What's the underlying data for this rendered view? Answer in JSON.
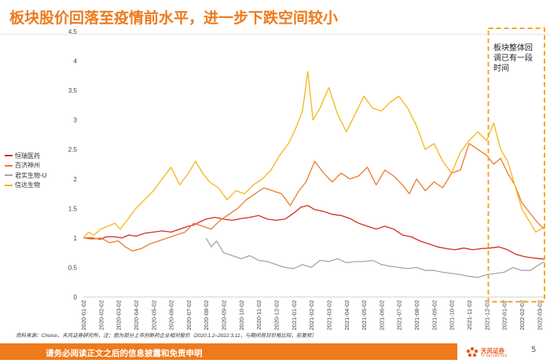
{
  "slide": {
    "title": "板块股价回落至疫情前水平，进一步下跌空间较小",
    "source": "资料来源：Choice，天风证券研究所，注：图为部分上市创新药企业相对股价（2020.1.2–2022.3.11，与期间首日价格比较，前复权）",
    "footer_text": "请务必阅读正文之后的信息披露和免责申明",
    "page_number": "5",
    "logo_text": "天风证券",
    "logo_sub": "TF SECURITIES"
  },
  "colors": {
    "accent": "#ee7a1c",
    "hengrui": "#d22d1e",
    "baiji": "#ec7b2c",
    "junshi": "#a6a6a6",
    "xinda": "#f6b51a"
  },
  "chart_data": {
    "type": "line",
    "title": "板块股价回落至疫情前水平，进一步下跌空间较小",
    "ylim": [
      0,
      4.5
    ],
    "yticks": [
      "0",
      "0.5",
      "1",
      "1.5",
      "2",
      "2.5",
      "3",
      "3.5",
      "4",
      "4.5"
    ],
    "x_range_months": [
      0,
      26.3
    ],
    "xtick_labels": [
      "2020-01-02",
      "2020-02-02",
      "2020-03-02",
      "2020-04-02",
      "2020-05-02",
      "2020-06-02",
      "2020-07-02",
      "2020-08-02",
      "2020-09-02",
      "2020-10-02",
      "2020-11-02",
      "2020-12-02",
      "2021-01-02",
      "2021-02-02",
      "2021-03-02",
      "2021-04-02",
      "2021-05-02",
      "2021-06-02",
      "2021-07-02",
      "2021-08-02",
      "2021-09-02",
      "2021-10-02",
      "2021-11-02",
      "2021-12-02",
      "2022-01-02",
      "2022-02-02",
      "2022-03-02"
    ],
    "annotation": "板块整体回调已有一段时间",
    "highlight_range_months": [
      23.1,
      26.3
    ],
    "series": [
      {
        "name": "恒瑞医药",
        "color_key": "hengrui",
        "x": [
          0,
          0.5,
          1,
          1.3,
          1.8,
          2.2,
          2.6,
          3,
          3.5,
          4,
          4.5,
          5,
          5.5,
          6,
          6.3,
          6.7,
          7,
          7.5,
          8,
          8.5,
          9,
          9.5,
          10,
          10.5,
          11,
          11.5,
          12,
          12.4,
          12.8,
          13.2,
          13.7,
          14.2,
          14.7,
          15.2,
          15.7,
          16.2,
          16.7,
          17.2,
          17.7,
          18.2,
          18.7,
          19.2,
          19.7,
          20.2,
          20.7,
          21.2,
          21.7,
          22.2,
          22.7,
          23.2,
          23.7,
          24.2,
          24.7,
          25.2,
          25.7,
          26.0,
          26.3
        ],
        "values": [
          1.0,
          1.0,
          0.98,
          1.02,
          1.02,
          1.0,
          1.05,
          1.03,
          1.08,
          1.1,
          1.12,
          1.1,
          1.15,
          1.2,
          1.22,
          1.28,
          1.32,
          1.35,
          1.32,
          1.3,
          1.33,
          1.35,
          1.38,
          1.32,
          1.3,
          1.32,
          1.42,
          1.52,
          1.55,
          1.48,
          1.45,
          1.4,
          1.38,
          1.33,
          1.25,
          1.2,
          1.15,
          1.2,
          1.15,
          1.05,
          1.02,
          0.95,
          0.9,
          0.85,
          0.82,
          0.8,
          0.83,
          0.8,
          0.82,
          0.83,
          0.85,
          0.8,
          0.72,
          0.68,
          0.66,
          0.65,
          0.64
        ]
      },
      {
        "name": "百济神州",
        "color_key": "baiji",
        "x": [
          0,
          0.5,
          1,
          1.5,
          2,
          2.4,
          2.8,
          3.3,
          3.8,
          4.3,
          4.8,
          5.3,
          5.8,
          6.3,
          6.8,
          7.3,
          7.8,
          8.3,
          8.8,
          9.3,
          9.8,
          10.3,
          10.8,
          11.3,
          11.8,
          12.3,
          12.7,
          13.2,
          13.7,
          14.2,
          14.7,
          15.2,
          15.7,
          16.2,
          16.7,
          17.2,
          17.7,
          18.2,
          18.6,
          19.0,
          19.5,
          20.0,
          20.5,
          21.0,
          21.5,
          22.0,
          22.5,
          23.0,
          23.4,
          23.8,
          24.2,
          24.6,
          25.0,
          25.4,
          25.8,
          26.1,
          26.3
        ],
        "values": [
          1.0,
          0.98,
          1.0,
          0.92,
          0.95,
          0.85,
          0.78,
          0.82,
          0.9,
          0.95,
          1.0,
          1.05,
          1.1,
          1.25,
          1.2,
          1.15,
          1.3,
          1.4,
          1.5,
          1.65,
          1.75,
          1.85,
          1.8,
          1.75,
          1.55,
          1.8,
          1.95,
          2.3,
          2.1,
          1.95,
          2.1,
          2.0,
          2.05,
          2.2,
          1.9,
          2.15,
          2.05,
          1.9,
          1.75,
          2.0,
          1.8,
          1.95,
          1.85,
          2.1,
          2.15,
          2.6,
          2.5,
          2.4,
          2.25,
          2.35,
          2.1,
          1.9,
          1.6,
          1.45,
          1.3,
          1.2,
          1.15
        ]
      },
      {
        "name": "君实生物-U",
        "color_key": "junshi",
        "x": [
          7.0,
          7.3,
          7.6,
          8.0,
          8.5,
          9.0,
          9.5,
          10.0,
          10.5,
          11.0,
          11.5,
          12.0,
          12.5,
          13.0,
          13.5,
          14.0,
          14.5,
          15.0,
          15.5,
          16.0,
          16.5,
          17.0,
          17.5,
          18.0,
          18.5,
          19.0,
          19.5,
          20.0,
          20.5,
          21.0,
          21.5,
          22.0,
          22.5,
          23.0,
          23.5,
          24.0,
          24.5,
          25.0,
          25.5,
          26.0,
          26.3
        ],
        "values": [
          1.0,
          0.85,
          0.95,
          0.75,
          0.7,
          0.65,
          0.7,
          0.62,
          0.6,
          0.55,
          0.5,
          0.48,
          0.55,
          0.5,
          0.62,
          0.6,
          0.65,
          0.58,
          0.6,
          0.6,
          0.62,
          0.55,
          0.52,
          0.5,
          0.48,
          0.5,
          0.45,
          0.45,
          0.42,
          0.4,
          0.38,
          0.35,
          0.33,
          0.38,
          0.4,
          0.42,
          0.5,
          0.45,
          0.45,
          0.55,
          0.6
        ]
      },
      {
        "name": "信达生物",
        "color_key": "xinda",
        "x": [
          0,
          0.3,
          0.6,
          1,
          1.4,
          1.8,
          2.1,
          2.5,
          3,
          3.5,
          4,
          4.5,
          5,
          5.5,
          6,
          6.4,
          6.8,
          7.2,
          7.7,
          8.2,
          8.7,
          9.2,
          9.7,
          10.2,
          10.7,
          11.2,
          11.7,
          12.1,
          12.5,
          12.8,
          13.1,
          13.5,
          14.0,
          14.5,
          15.0,
          15.5,
          16.0,
          16.5,
          17.0,
          17.5,
          18.0,
          18.5,
          19.0,
          19.5,
          20.0,
          20.5,
          21.0,
          21.5,
          22.0,
          22.5,
          23.0,
          23.4,
          23.8,
          24.2,
          24.6,
          25.0,
          25.4,
          25.8,
          26.1,
          26.3
        ],
        "values": [
          1.0,
          1.1,
          1.05,
          1.15,
          1.2,
          1.25,
          1.15,
          1.3,
          1.5,
          1.65,
          1.8,
          2.0,
          2.2,
          1.9,
          2.1,
          2.3,
          2.1,
          1.95,
          1.85,
          1.65,
          1.8,
          1.75,
          1.9,
          2.0,
          2.15,
          2.4,
          2.6,
          2.85,
          3.15,
          3.82,
          3.0,
          3.2,
          3.55,
          3.1,
          2.8,
          3.1,
          3.4,
          3.2,
          3.15,
          3.3,
          3.4,
          3.2,
          2.9,
          2.5,
          2.6,
          2.3,
          2.1,
          2.45,
          2.65,
          2.8,
          2.65,
          2.95,
          2.5,
          2.3,
          1.9,
          1.5,
          1.3,
          1.1,
          1.15,
          1.2
        ]
      }
    ]
  }
}
